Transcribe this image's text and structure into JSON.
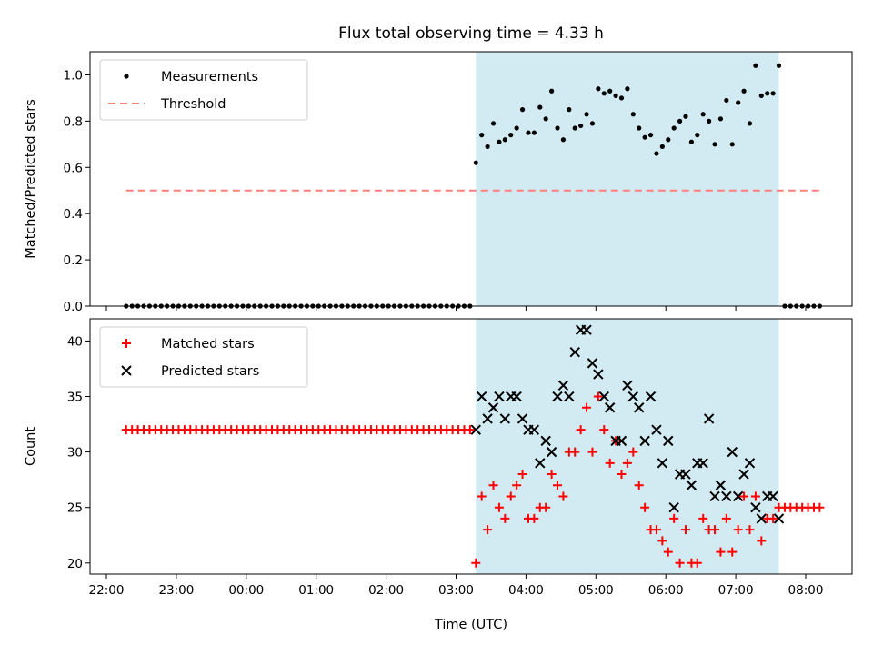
{
  "title": "Flux total observing time = 4.33 h",
  "colors": {
    "measurement": "#000000",
    "threshold": "#ff7f7f",
    "matched": "#ff0000",
    "predicted": "#000000",
    "shade": "#add8e6"
  },
  "chart_data": [
    {
      "type": "scatter",
      "ylabel": "Matched/Predicted stars",
      "xlabel": "",
      "ylim": [
        0.0,
        1.1
      ],
      "yticks": [
        "0.0",
        "0.2",
        "0.4",
        "0.6",
        "0.8",
        "1.0"
      ],
      "legend_position": "top-left",
      "shaded_span": [
        "03:17",
        "07:37"
      ],
      "series": [
        {
          "name": "Measurements",
          "marker": "dot",
          "x": [
            "22:17",
            "22:22",
            "22:27",
            "22:32",
            "22:37",
            "22:42",
            "22:47",
            "22:52",
            "22:57",
            "23:02",
            "23:07",
            "23:12",
            "23:17",
            "23:22",
            "23:27",
            "23:32",
            "23:37",
            "23:42",
            "23:47",
            "23:52",
            "23:57",
            "00:02",
            "00:07",
            "00:12",
            "00:17",
            "00:22",
            "00:27",
            "00:32",
            "00:37",
            "00:42",
            "00:47",
            "00:52",
            "00:57",
            "01:02",
            "01:07",
            "01:12",
            "01:17",
            "01:22",
            "01:27",
            "01:32",
            "01:37",
            "01:42",
            "01:47",
            "01:52",
            "01:57",
            "02:02",
            "02:07",
            "02:12",
            "02:17",
            "02:22",
            "02:27",
            "02:32",
            "02:37",
            "02:42",
            "02:47",
            "02:52",
            "02:57",
            "03:02",
            "03:07",
            "03:12",
            "03:17",
            "03:22",
            "03:27",
            "03:32",
            "03:37",
            "03:42",
            "03:47",
            "03:52",
            "03:57",
            "04:02",
            "04:07",
            "04:12",
            "04:17",
            "04:22",
            "04:27",
            "04:32",
            "04:37",
            "04:42",
            "04:47",
            "04:52",
            "04:57",
            "05:02",
            "05:07",
            "05:12",
            "05:17",
            "05:22",
            "05:27",
            "05:32",
            "05:37",
            "05:42",
            "05:47",
            "05:52",
            "05:57",
            "06:02",
            "06:07",
            "06:12",
            "06:17",
            "06:22",
            "06:27",
            "06:32",
            "06:37",
            "06:42",
            "06:47",
            "06:52",
            "06:57",
            "07:02",
            "07:07",
            "07:12",
            "07:17",
            "07:22",
            "07:27",
            "07:32",
            "07:37",
            "07:42",
            "07:47",
            "07:52",
            "07:57",
            "08:02",
            "08:07",
            "08:12"
          ],
          "y": [
            0,
            0,
            0,
            0,
            0,
            0,
            0,
            0,
            0,
            0,
            0,
            0,
            0,
            0,
            0,
            0,
            0,
            0,
            0,
            0,
            0,
            0,
            0,
            0,
            0,
            0,
            0,
            0,
            0,
            0,
            0,
            0,
            0,
            0,
            0,
            0,
            0,
            0,
            0,
            0,
            0,
            0,
            0,
            0,
            0,
            0,
            0,
            0,
            0,
            0,
            0,
            0,
            0,
            0,
            0,
            0,
            0,
            0,
            0,
            0,
            0.62,
            0.74,
            0.69,
            0.79,
            0.71,
            0.72,
            0.74,
            0.77,
            0.85,
            0.75,
            0.75,
            0.86,
            0.81,
            0.93,
            0.77,
            0.72,
            0.85,
            0.77,
            0.78,
            0.83,
            0.79,
            0.94,
            0.92,
            0.93,
            0.91,
            0.9,
            0.94,
            0.83,
            0.77,
            0.73,
            0.74,
            0.66,
            0.69,
            0.72,
            0.77,
            0.8,
            0.82,
            0.71,
            0.74,
            0.83,
            0.8,
            0.7,
            0.81,
            0.89,
            0.7,
            0.88,
            0.93,
            0.79,
            1.04,
            0.91,
            0.92,
            0.92,
            1.04,
            0,
            0,
            0,
            0,
            0,
            0,
            0
          ]
        },
        {
          "name": "Threshold",
          "marker": "dashed-line",
          "x": [
            "22:17",
            "08:12"
          ],
          "y": [
            0.5,
            0.5
          ]
        }
      ]
    },
    {
      "type": "scatter",
      "ylabel": "Count",
      "xlabel": "Time (UTC)",
      "ylim": [
        19,
        42
      ],
      "yticks": [
        "20",
        "25",
        "30",
        "35",
        "40"
      ],
      "xticks": [
        "22:00",
        "23:00",
        "00:00",
        "01:00",
        "02:00",
        "03:00",
        "04:00",
        "05:00",
        "06:00",
        "07:00",
        "08:00"
      ],
      "legend_position": "top-left",
      "shaded_span": [
        "03:17",
        "07:37"
      ],
      "series": [
        {
          "name": "Matched stars",
          "marker": "plus",
          "x": [
            "22:17",
            "22:22",
            "22:27",
            "22:32",
            "22:37",
            "22:42",
            "22:47",
            "22:52",
            "22:57",
            "23:02",
            "23:07",
            "23:12",
            "23:17",
            "23:22",
            "23:27",
            "23:32",
            "23:37",
            "23:42",
            "23:47",
            "23:52",
            "23:57",
            "00:02",
            "00:07",
            "00:12",
            "00:17",
            "00:22",
            "00:27",
            "00:32",
            "00:37",
            "00:42",
            "00:47",
            "00:52",
            "00:57",
            "01:02",
            "01:07",
            "01:12",
            "01:17",
            "01:22",
            "01:27",
            "01:32",
            "01:37",
            "01:42",
            "01:47",
            "01:52",
            "01:57",
            "02:02",
            "02:07",
            "02:12",
            "02:17",
            "02:22",
            "02:27",
            "02:32",
            "02:37",
            "02:42",
            "02:47",
            "02:52",
            "02:57",
            "03:02",
            "03:07",
            "03:12",
            "03:17",
            "03:22",
            "03:27",
            "03:32",
            "03:37",
            "03:42",
            "03:47",
            "03:52",
            "03:57",
            "04:02",
            "04:07",
            "04:12",
            "04:17",
            "04:22",
            "04:27",
            "04:32",
            "04:37",
            "04:42",
            "04:47",
            "04:52",
            "04:57",
            "05:02",
            "05:07",
            "05:12",
            "05:17",
            "05:22",
            "05:27",
            "05:32",
            "05:37",
            "05:42",
            "05:47",
            "05:52",
            "05:57",
            "06:02",
            "06:07",
            "06:12",
            "06:17",
            "06:22",
            "06:27",
            "06:32",
            "06:37",
            "06:42",
            "06:47",
            "06:52",
            "06:57",
            "07:02",
            "07:07",
            "07:12",
            "07:17",
            "07:22",
            "07:27",
            "07:32",
            "07:37",
            "07:42",
            "07:47",
            "07:52",
            "07:57",
            "08:02",
            "08:07",
            "08:12"
          ],
          "y": [
            32,
            32,
            32,
            32,
            32,
            32,
            32,
            32,
            32,
            32,
            32,
            32,
            32,
            32,
            32,
            32,
            32,
            32,
            32,
            32,
            32,
            32,
            32,
            32,
            32,
            32,
            32,
            32,
            32,
            32,
            32,
            32,
            32,
            32,
            32,
            32,
            32,
            32,
            32,
            32,
            32,
            32,
            32,
            32,
            32,
            32,
            32,
            32,
            32,
            32,
            32,
            32,
            32,
            32,
            32,
            32,
            32,
            32,
            32,
            32,
            20,
            26,
            23,
            27,
            25,
            24,
            26,
            27,
            28,
            24,
            24,
            25,
            25,
            28,
            27,
            26,
            30,
            30,
            32,
            34,
            30,
            35,
            32,
            29,
            31,
            28,
            29,
            30,
            27,
            25,
            23,
            23,
            22,
            21,
            24,
            20,
            23,
            20,
            20,
            24,
            23,
            23,
            21,
            24,
            21,
            23,
            26,
            23,
            26,
            22,
            24,
            24,
            25,
            25,
            25,
            25,
            25,
            25,
            25,
            25
          ]
        },
        {
          "name": "Predicted stars",
          "marker": "x",
          "x": [
            "03:17",
            "03:22",
            "03:27",
            "03:32",
            "03:37",
            "03:42",
            "03:47",
            "03:52",
            "03:57",
            "04:02",
            "04:07",
            "04:12",
            "04:17",
            "04:22",
            "04:27",
            "04:32",
            "04:37",
            "04:42",
            "04:47",
            "04:52",
            "04:57",
            "05:02",
            "05:07",
            "05:12",
            "05:17",
            "05:22",
            "05:27",
            "05:32",
            "05:37",
            "05:42",
            "05:47",
            "05:52",
            "05:57",
            "06:02",
            "06:07",
            "06:12",
            "06:17",
            "06:22",
            "06:27",
            "06:32",
            "06:37",
            "06:42",
            "06:47",
            "06:52",
            "06:57",
            "07:02",
            "07:07",
            "07:12",
            "07:17",
            "07:22",
            "07:27",
            "07:32",
            "07:37"
          ],
          "y": [
            32,
            35,
            33,
            34,
            35,
            33,
            35,
            35,
            33,
            32,
            32,
            29,
            31,
            30,
            35,
            36,
            35,
            39,
            41,
            41,
            38,
            37,
            35,
            34,
            31,
            31,
            36,
            35,
            34,
            31,
            35,
            32,
            29,
            31,
            25,
            28,
            28,
            27,
            29,
            29,
            33,
            26,
            27,
            26,
            30,
            26,
            28,
            29,
            25,
            24,
            26,
            26,
            24
          ]
        }
      ]
    }
  ]
}
